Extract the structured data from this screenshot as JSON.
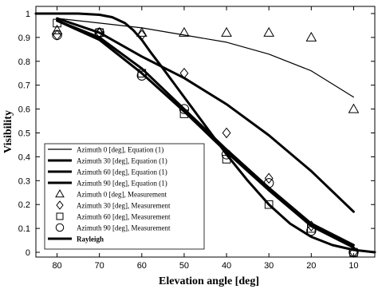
{
  "chart_data": {
    "type": "line",
    "xlabel": "Elevation angle [deg]",
    "ylabel": "Visibility",
    "xlim": [
      85,
      5
    ],
    "ylim": [
      -0.02,
      1.03
    ],
    "x_reversed": true,
    "xticks": [
      80,
      70,
      60,
      50,
      40,
      30,
      20,
      10
    ],
    "yticks": [
      0,
      0.1,
      0.2,
      0.3,
      0.4,
      0.5,
      0.6,
      0.7,
      0.8,
      0.9,
      1
    ],
    "grid": false,
    "legend_position": "bottom-left",
    "series": [
      {
        "name": "Azimuth 0 [deg], Equation (1)",
        "kind": "line",
        "weight": "thin",
        "x": [
          80,
          70,
          60,
          50,
          40,
          30,
          20,
          10
        ],
        "y": [
          0.98,
          0.96,
          0.94,
          0.91,
          0.88,
          0.83,
          0.76,
          0.65
        ]
      },
      {
        "name": "Azimuth 30 [deg], Equation (1)",
        "kind": "line",
        "weight": "thick",
        "x": [
          80,
          70,
          60,
          50,
          40,
          30,
          20,
          10
        ],
        "y": [
          0.98,
          0.92,
          0.82,
          0.73,
          0.62,
          0.49,
          0.34,
          0.17
        ]
      },
      {
        "name": "Azimuth 60 [deg], Equation (1)",
        "kind": "line",
        "weight": "thick",
        "x": [
          80,
          70,
          60,
          50,
          40,
          30,
          20,
          10
        ],
        "y": [
          0.97,
          0.9,
          0.77,
          0.6,
          0.43,
          0.27,
          0.12,
          0.03
        ]
      },
      {
        "name": "Azimuth 90 [deg], Equation (1)",
        "kind": "line",
        "weight": "thick",
        "x": [
          80,
          70,
          60,
          50,
          40,
          30,
          20,
          10
        ],
        "y": [
          0.97,
          0.89,
          0.75,
          0.59,
          0.42,
          0.26,
          0.11,
          0.02
        ]
      },
      {
        "name": "Azimuth 0 [deg], Measurement",
        "kind": "marker",
        "marker": "triangle",
        "x": [
          80,
          70,
          60,
          50,
          40,
          30,
          20,
          10
        ],
        "y": [
          0.93,
          0.92,
          0.92,
          0.92,
          0.92,
          0.92,
          0.9,
          0.6
        ]
      },
      {
        "name": "Azimuth 30 [deg], Measurement",
        "kind": "marker",
        "marker": "diamond",
        "x": [
          80,
          70,
          60,
          50,
          40,
          30,
          20,
          10
        ],
        "y": [
          0.91,
          0.92,
          0.91,
          0.75,
          0.5,
          0.31,
          0.11,
          0.0
        ]
      },
      {
        "name": "Azimuth 60 [deg], Measurement",
        "kind": "marker",
        "marker": "square",
        "x": [
          80,
          70,
          60,
          50,
          40,
          30,
          20,
          10
        ],
        "y": [
          0.96,
          0.92,
          0.75,
          0.58,
          0.39,
          0.2,
          0.1,
          0.0
        ]
      },
      {
        "name": "Azimuth 90 [deg], Measurement",
        "kind": "marker",
        "marker": "circle",
        "x": [
          80,
          70,
          60,
          50,
          40,
          30,
          20,
          10
        ],
        "y": [
          0.91,
          0.92,
          0.74,
          0.6,
          0.41,
          0.29,
          0.09,
          0.0
        ]
      },
      {
        "name": "Rayleigh",
        "kind": "line",
        "weight": "thick",
        "x": [
          85,
          80,
          75,
          70,
          67,
          64,
          62,
          60,
          58,
          55,
          50,
          45,
          40,
          35,
          30,
          25,
          20,
          15,
          10,
          5
        ],
        "y": [
          1.0,
          1.0,
          1.0,
          0.995,
          0.985,
          0.96,
          0.93,
          0.89,
          0.84,
          0.77,
          0.65,
          0.53,
          0.41,
          0.3,
          0.2,
          0.12,
          0.065,
          0.03,
          0.01,
          0.0
        ]
      }
    ]
  }
}
